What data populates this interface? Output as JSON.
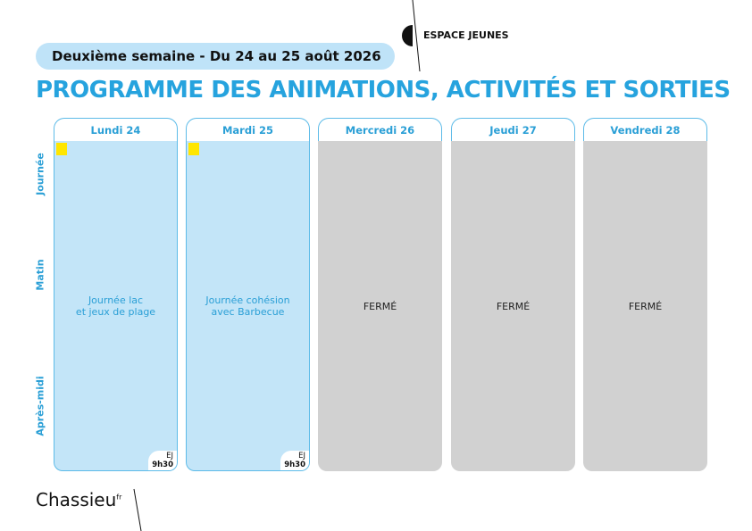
{
  "header": {
    "week_label": "Deuxième semaine - Du 24 au 25 août 2026",
    "brand": "ESPACE JEUNES",
    "title": "PROGRAMME DES ANIMATIONS, ACTIVITÉS ET SORTIES"
  },
  "row_labels": [
    "Journée",
    "Matin",
    "Après-midi"
  ],
  "days": [
    {
      "name": "Lundi 24",
      "activity": [
        "Journée lac",
        "et jeux de plage"
      ],
      "location": "EJ",
      "time": "9h30"
    },
    {
      "name": "Mardi 25",
      "activity": [
        "Journée cohésion",
        "avec Barbecue"
      ],
      "location": "EJ",
      "time": "9h30"
    },
    {
      "name": "Mercredi 26",
      "status": "FERMÉ"
    },
    {
      "name": "Jeudi 27",
      "status": "FERMÉ"
    },
    {
      "name": "Vendredi 28",
      "status": "FERMÉ"
    }
  ],
  "footer": {
    "logo": "Chassieu",
    "logo_suffix": "fr"
  }
}
